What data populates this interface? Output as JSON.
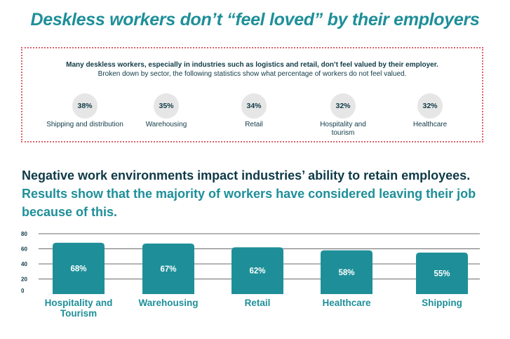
{
  "title": "Deskless workers don’t “feel loved” by their employers",
  "intro": {
    "line1": "Many deskless workers, especially in industries such as logistics and retail, don’t feel valued by their employer.",
    "line2": "Broken down by sector, the following statistics show what percentage of workers do not feel valued."
  },
  "stats": [
    {
      "value": "38%",
      "label": "Shipping and distribution"
    },
    {
      "value": "35%",
      "label": "Warehousing"
    },
    {
      "value": "34%",
      "label": "Retail"
    },
    {
      "value": "32%",
      "label": "Hospitality and tourism"
    },
    {
      "value": "32%",
      "label": "Healthcare"
    }
  ],
  "headline": {
    "part1": "Negative work environments impact industries’ ability to retain employees.",
    "part2": "Results show that the majority of workers have considered leaving their job because of this."
  },
  "colors": {
    "teal": "#1e8f99",
    "navy": "#0f3a47",
    "border": "#d9636b",
    "circle": "#e6e6e6"
  },
  "chart_data": {
    "type": "bar",
    "title": "",
    "xlabel": "",
    "ylabel": "",
    "categories": [
      "Hospitality and Tourism",
      "Warehousing",
      "Retail",
      "Healthcare",
      "Shipping"
    ],
    "values": [
      68,
      67,
      62,
      58,
      55
    ],
    "data_labels": [
      "68%",
      "67%",
      "62%",
      "58%",
      "55%"
    ],
    "yticks": [
      0,
      20,
      40,
      60,
      80
    ],
    "ylim": [
      0,
      80
    ],
    "grid": true
  }
}
